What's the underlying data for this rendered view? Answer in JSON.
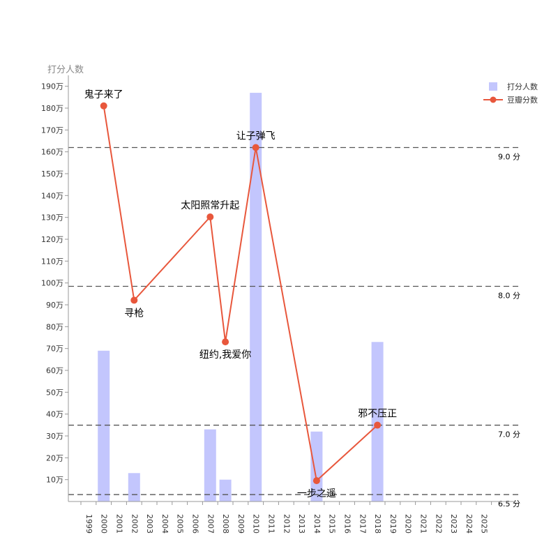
{
  "chart_data": {
    "type": "bar+line",
    "y_axis_title": "打分人数",
    "categories": [
      "1999",
      "2000",
      "2001",
      "2002",
      "2003",
      "2004",
      "2005",
      "2006",
      "2007",
      "2008",
      "2009",
      "2010",
      "2011",
      "2012",
      "2013",
      "2014",
      "2015",
      "2016",
      "2017",
      "2018",
      "2019",
      "2020",
      "2021",
      "2022",
      "2023",
      "2024",
      "2025"
    ],
    "yticks": [
      {
        "value": 10,
        "label": "10万"
      },
      {
        "value": 20,
        "label": "20万"
      },
      {
        "value": 30,
        "label": "30万"
      },
      {
        "value": 40,
        "label": "40万"
      },
      {
        "value": 50,
        "label": "50万"
      },
      {
        "value": 60,
        "label": "60万"
      },
      {
        "value": 70,
        "label": "70万"
      },
      {
        "value": 80,
        "label": "80万"
      },
      {
        "value": 90,
        "label": "90万"
      },
      {
        "value": 100,
        "label": "100万"
      },
      {
        "value": 110,
        "label": "110万"
      },
      {
        "value": 120,
        "label": "120万"
      },
      {
        "value": 130,
        "label": "130万"
      },
      {
        "value": 140,
        "label": "140万"
      },
      {
        "value": 150,
        "label": "150万"
      },
      {
        "value": 160,
        "label": "160万"
      },
      {
        "value": 170,
        "label": "170万"
      },
      {
        "value": 180,
        "label": "180万"
      },
      {
        "value": 190,
        "label": "190万"
      }
    ],
    "ylim": [
      0,
      195
    ],
    "score_lim": [
      6.45,
      9.52
    ],
    "legend": {
      "position": "top-right",
      "items": [
        {
          "label": "打分人数",
          "color": "#c3c6fd",
          "kind": "bar"
        },
        {
          "label": "豆瓣分数",
          "color": "#e8573c",
          "kind": "line"
        }
      ]
    },
    "series": [
      {
        "name": "打分人数",
        "kind": "bar",
        "color": "#c3c6fd",
        "points": [
          {
            "x": "2000",
            "value": 69
          },
          {
            "x": "2002",
            "value": 13
          },
          {
            "x": "2007",
            "value": 33
          },
          {
            "x": "2008",
            "value": 10
          },
          {
            "x": "2010",
            "value": 187
          },
          {
            "x": "2014",
            "value": 32
          },
          {
            "x": "2018",
            "value": 73
          }
        ]
      },
      {
        "name": "豆瓣分数",
        "kind": "line",
        "color": "#e8573c",
        "points": [
          {
            "x": "2000",
            "value": 9.3,
            "label": "鬼子来了",
            "label_pos": "above"
          },
          {
            "x": "2002",
            "value": 7.9,
            "label": "寻枪",
            "label_pos": "below"
          },
          {
            "x": "2007",
            "value": 8.5,
            "label": "太阳照常升起",
            "label_pos": "above"
          },
          {
            "x": "2008",
            "value": 7.6,
            "label": "纽约,我爱你",
            "label_pos": "below"
          },
          {
            "x": "2010",
            "value": 9.0,
            "label": "让子弹飞",
            "label_pos": "above"
          },
          {
            "x": "2014",
            "value": 6.6,
            "label": "一步之遥",
            "label_pos": "below"
          },
          {
            "x": "2018",
            "value": 7.0,
            "label": "邪不压正",
            "label_pos": "above"
          }
        ]
      }
    ],
    "reference_lines": [
      {
        "score": 9.0,
        "label": "9.0 分"
      },
      {
        "score": 8.0,
        "label": "8.0 分"
      },
      {
        "score": 7.0,
        "label": "7.0 分"
      },
      {
        "score": 6.5,
        "label": "6.5 分"
      }
    ],
    "grid": false
  }
}
